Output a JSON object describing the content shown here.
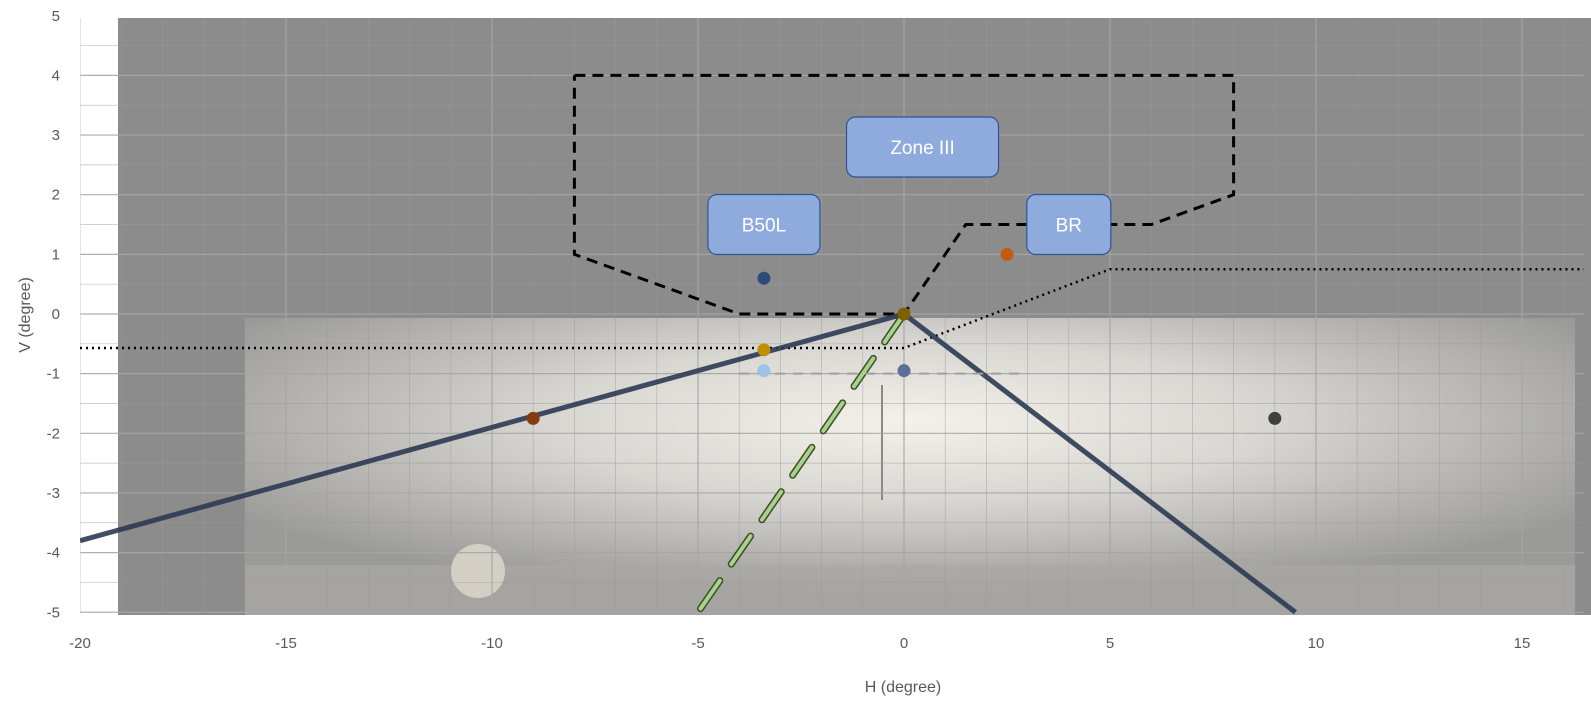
{
  "chart_data": {
    "type": "scatter",
    "xlabel": "H (degree)",
    "ylabel": "V (degree)",
    "xlim": [
      -20,
      16.5
    ],
    "ylim": [
      -5,
      5
    ],
    "x_ticks": [
      -20,
      -15,
      -10,
      -5,
      0,
      5,
      10,
      15
    ],
    "y_ticks": [
      5,
      4,
      3,
      2,
      1,
      0,
      -1,
      -2,
      -3,
      -4,
      -5
    ],
    "grid": true,
    "minor_grid": true,
    "background": "photo of headlamp beam on wall (grey)",
    "annotations": [
      {
        "text": "Zone III",
        "x": 0.45,
        "y": 2.8
      },
      {
        "text": "B50L",
        "x": -3.4,
        "y": 1.5
      },
      {
        "text": "BR",
        "x": 4.0,
        "y": 1.5
      }
    ],
    "series": [
      {
        "style": "dashed-black",
        "points": [
          [
            -8,
            4
          ],
          [
            8,
            4
          ],
          [
            8,
            2
          ],
          [
            6,
            1.5
          ],
          [
            1.5,
            1.5
          ],
          [
            0,
            0
          ],
          [
            -4,
            0
          ],
          [
            -8,
            1
          ],
          [
            -8,
            4
          ]
        ]
      },
      {
        "style": "dotted-black",
        "points": [
          [
            -20,
            -0.57
          ],
          [
            0,
            -0.57
          ],
          [
            5,
            0.75
          ],
          [
            16.5,
            0.75
          ]
        ]
      },
      {
        "style": "solid-dark-navy",
        "points": [
          [
            -20,
            -3.8
          ],
          [
            0,
            0
          ],
          [
            9.5,
            -5
          ]
        ]
      },
      {
        "style": "dashed-green",
        "points": [
          [
            0,
            0
          ],
          [
            -5,
            -5
          ]
        ]
      },
      {
        "style": "dashed-grey",
        "points": [
          [
            -4,
            -1
          ],
          [
            3,
            -1
          ]
        ]
      }
    ],
    "markers": [
      {
        "x": -3.4,
        "y": 0.6,
        "color": "#2F4B7C"
      },
      {
        "x": 2.5,
        "y": 1.0,
        "color": "#C55A11"
      },
      {
        "x": -3.4,
        "y": -0.6,
        "color": "#BF8F00"
      },
      {
        "x": -3.4,
        "y": -0.95,
        "color": "#9DC3E6"
      },
      {
        "x": 0,
        "y": -0.95,
        "color": "#5B6F99"
      },
      {
        "x": -9,
        "y": -1.75,
        "color": "#843C0C"
      },
      {
        "x": 9,
        "y": -1.75,
        "color": "#404040"
      },
      {
        "x": 0,
        "y": 0,
        "color": "#7F6000"
      }
    ],
    "colors": {
      "plot_bg": "#8c8c8c",
      "grid": "#a6a6a6",
      "box_fill": "#8faadc",
      "box_stroke": "#2f5597",
      "cutoff_line": "#2b3a52",
      "green": "#a9d18e"
    }
  }
}
